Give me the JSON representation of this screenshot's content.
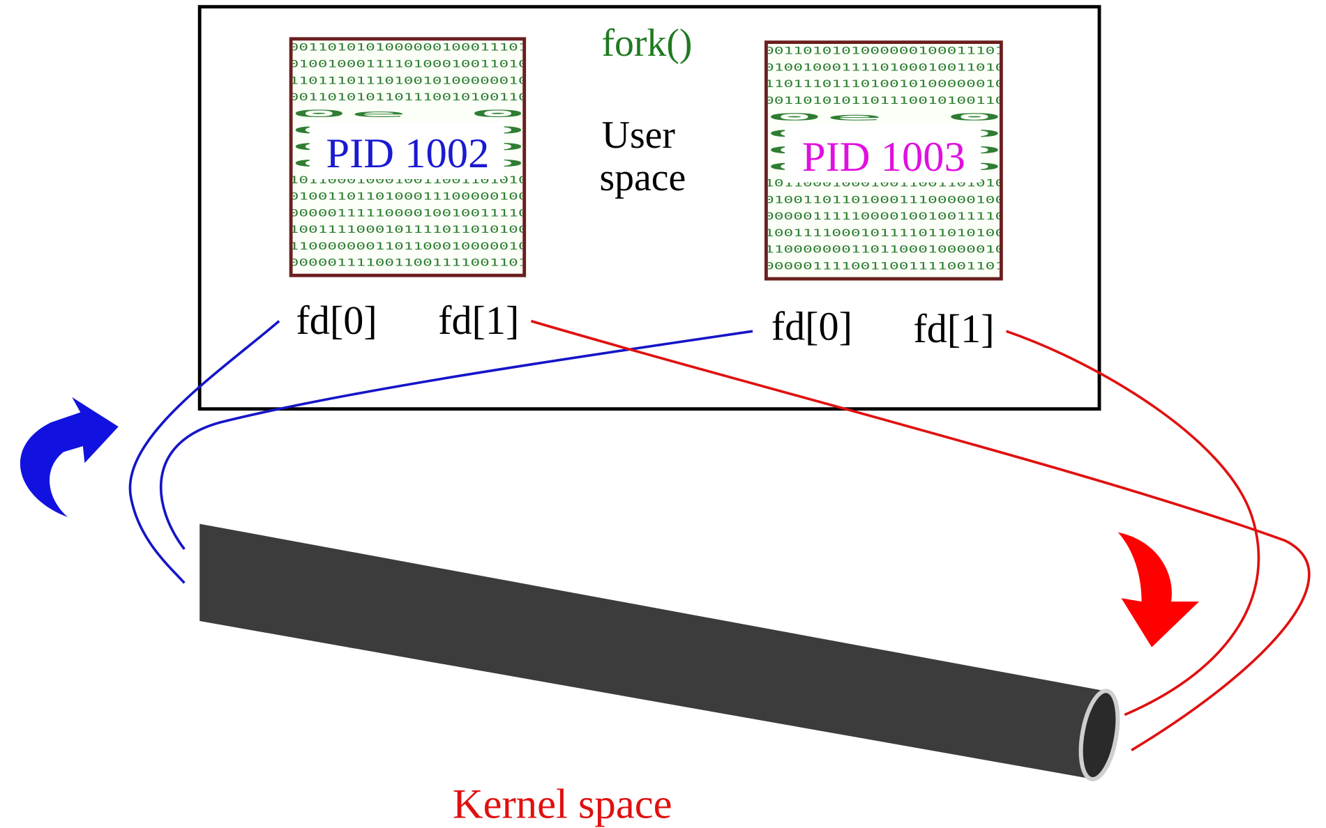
{
  "title": "fork()",
  "user_space": [
    "User",
    "space"
  ],
  "kernel_space": "Kernel space",
  "processes": [
    {
      "label": "PID 1002",
      "fd_read": "fd[0]",
      "fd_write": "fd[1]",
      "binary": [
        "0011010101000000100011101",
        "0100100011110100010011010",
        "1101110111010010100000010",
        "0011010101101110010100110",
        "0e                      0",
        "01                      0",
        "0e                      0",
        "01                      0",
        "1011000100010011001101010",
        "0100110110100011100000100",
        "0000011111000010010011110",
        "1001111000101111011010100",
        "1100000001101100010000010",
        "0000011110011001111001101"
      ]
    },
    {
      "label": "PID 1003",
      "fd_read": "fd[0]",
      "fd_write": "fd[1]",
      "binary": [
        "0011010101000000100011101",
        "0100100011110100010011010",
        "1101110111010010100000010",
        "0011010101101110010100110",
        "0e                      0",
        "01                      0",
        "0e                      0",
        "01                      0",
        "1011000100010011001101010",
        "0100110110100011100000100",
        "0000011111000010010011110",
        "1001111000101111011010100",
        "1100000001101100010000010",
        "0000011110011001111001101"
      ]
    }
  ]
}
